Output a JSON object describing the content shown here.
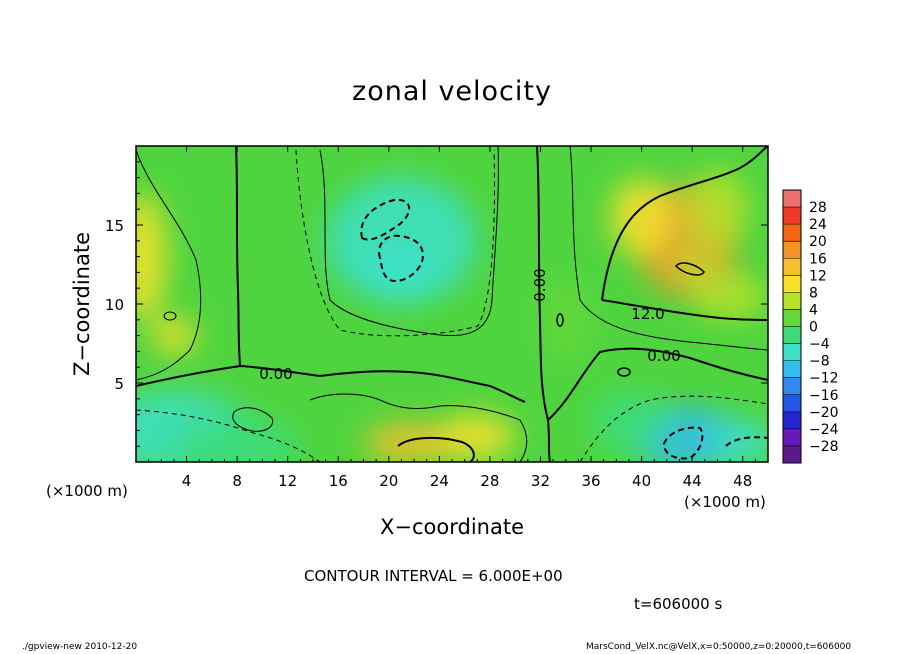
{
  "chart_data": {
    "type": "heatmap",
    "title": "zonal velocity",
    "xlabel": "X−coordinate",
    "ylabel": "Z−coordinate",
    "x_unit": "(×1000 m)",
    "y_unit": "(×1000 m)",
    "xlim": [
      0,
      50
    ],
    "ylim": [
      0,
      20
    ],
    "x_ticks": [
      4,
      8,
      12,
      16,
      20,
      24,
      28,
      32,
      36,
      40,
      44,
      48
    ],
    "y_ticks": [
      5,
      10,
      15
    ],
    "colorbar_levels": [
      28,
      24,
      20,
      16,
      12,
      8,
      4,
      0,
      -4,
      -8,
      -12,
      -16,
      -20,
      -24,
      -28
    ],
    "colorbar_level_labels": [
      "28",
      "24",
      "20",
      "16",
      "12",
      "8",
      "4",
      "0",
      "−4",
      "−8",
      "−12",
      "−16",
      "−20",
      "−24",
      "−28"
    ],
    "colorbar_colors": [
      "#f07070",
      "#f03a28",
      "#f46414",
      "#f49428",
      "#f8bf2c",
      "#f8e22c",
      "#b8e22a",
      "#64d83a",
      "#3cdc7a",
      "#3ce0c8",
      "#34bef0",
      "#3488f0",
      "#2456e8",
      "#2424d0",
      "#6818b8",
      "#5a1a8c"
    ],
    "contour_interval_text": "CONTOUR INTERVAL = 6.000E+00",
    "contour_labels": [
      "0.00",
      "0.00",
      "0.00",
      "12.0"
    ],
    "time_text": "t=606000 s",
    "fields": [
      {
        "x": 3,
        "z": 2,
        "value": -5,
        "sx": 6,
        "sz": 2.5
      },
      {
        "x": 8,
        "z": 1,
        "value": -4,
        "sx": 5,
        "sz": 2
      },
      {
        "x": 0.5,
        "z": 13,
        "value": 10,
        "sx": 2,
        "sz": 4
      },
      {
        "x": 3,
        "z": 8,
        "value": 9,
        "sx": 1.8,
        "sz": 1.2
      },
      {
        "x": 21,
        "z": 14,
        "value": -6,
        "sx": 6,
        "sz": 4
      },
      {
        "x": 21,
        "z": 12,
        "value": -5,
        "sx": 3,
        "sz": 2
      },
      {
        "x": 22,
        "z": 1.2,
        "value": 13,
        "sx": 4,
        "sz": 1.3
      },
      {
        "x": 27,
        "z": 1.6,
        "value": 8,
        "sx": 3,
        "sz": 1.5
      },
      {
        "x": 43.5,
        "z": 14,
        "value": 18,
        "sx": 4,
        "sz": 3.5
      },
      {
        "x": 44,
        "z": 12.5,
        "value": 6,
        "sx": 1.6,
        "sz": 1
      },
      {
        "x": 40,
        "z": 15.5,
        "value": 8,
        "sx": 2.5,
        "sz": 2.5
      },
      {
        "x": 46,
        "z": 16,
        "value": 6,
        "sx": 2.5,
        "sz": 2.5
      },
      {
        "x": 47,
        "z": 10.5,
        "value": 4,
        "sx": 3,
        "sz": 1.5
      },
      {
        "x": 43.5,
        "z": 1.5,
        "value": -11,
        "sx": 4.5,
        "sz": 2
      },
      {
        "x": 48,
        "z": 1.2,
        "value": -8,
        "sx": 2.5,
        "sz": 1.5
      },
      {
        "x": 39,
        "z": 2.5,
        "value": -4,
        "sx": 3,
        "sz": 2
      },
      {
        "x": 34,
        "z": 9,
        "value": 3,
        "sx": 2,
        "sz": 2.5
      }
    ]
  },
  "footer": {
    "left": "./gpview-new  2010-12-20",
    "right": "MarsCond_VelX.nc@VelX,x=0:50000,z=0:20000,t=606000"
  }
}
